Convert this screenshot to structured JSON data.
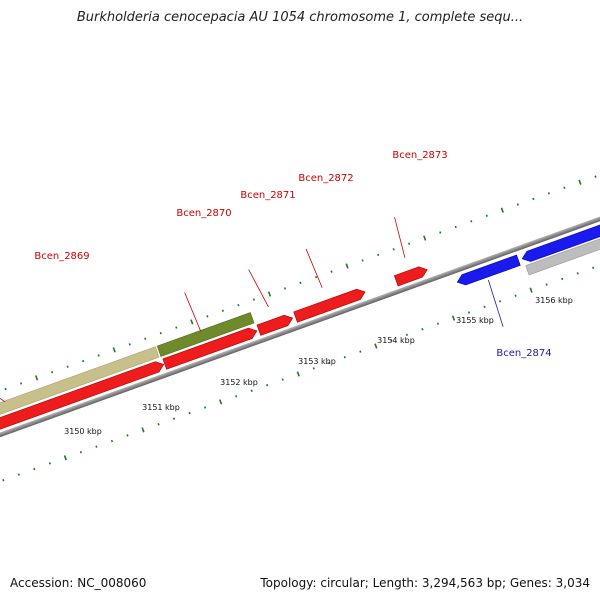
{
  "title": "Burkholderia cenocepacia AU 1054 chromosome 1, complete sequ...",
  "footer": {
    "accession": "Accession: NC_008060",
    "summary": "Topology: circular; Length: 3,294,563 bp; Genes: 3,034"
  },
  "colors": {
    "forward_cds": "#ee1c1c",
    "reverse_cds": "#1a1aee",
    "gene_label_forward": "#cc0000",
    "gene_label_reverse": "#1a1ab5",
    "tick": "#227722",
    "backbone": "#7a7a7a",
    "olive_light": "#c8c08a",
    "olive_dark": "#6f8a2a",
    "grey_feature": "#bdbdbd"
  },
  "axis": {
    "labels": [
      "3150 kbp",
      "3151 kbp",
      "3152 kbp",
      "3153 kbp",
      "3154 kbp",
      "3155 kbp",
      "3156 kbp"
    ]
  },
  "genes": [
    {
      "name": "Bcen_2869",
      "strand": "forward"
    },
    {
      "name": "Bcen_2870",
      "strand": "forward"
    },
    {
      "name": "Bcen_2871",
      "strand": "forward"
    },
    {
      "name": "Bcen_2872",
      "strand": "forward"
    },
    {
      "name": "Bcen_2873",
      "strand": "forward"
    },
    {
      "name": "Bcen_2874",
      "strand": "reverse"
    }
  ]
}
